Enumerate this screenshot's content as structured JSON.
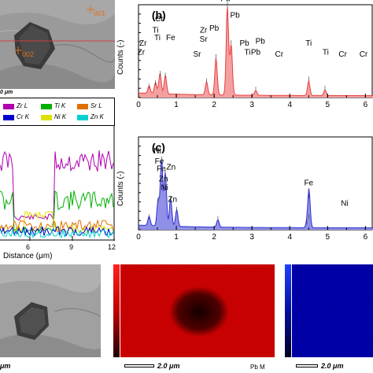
{
  "colors": {
    "zr": "#b000b0",
    "ti": "#00b000",
    "sr": "#e07000",
    "cr": "#0000d0",
    "ni": "#e0e000",
    "zn": "#00d0d0",
    "pb_spectrum": "#e84040",
    "pb_fill": "#f4a0a0",
    "fe_spectrum": "#3030d0",
    "fe_fill": "#9090e8",
    "line_marker": "#d04040",
    "point_marker": "#e07020"
  },
  "top_left_sem": {
    "point_1": "001",
    "point_2": "002",
    "scale_label": "0 μm"
  },
  "linescan": {
    "legend": [
      {
        "label": "Zr L",
        "color": "#b000b0"
      },
      {
        "label": "Ti K",
        "color": "#00b000"
      },
      {
        "label": "Sr L",
        "color": "#e07000"
      },
      {
        "label": "Cr K",
        "color": "#0000d0"
      },
      {
        "label": "Ni K",
        "color": "#e0e000"
      },
      {
        "label": "Zn K",
        "color": "#00d0d0"
      }
    ],
    "x_ticks": [
      "6",
      "9",
      "12"
    ],
    "xlabel": "Distance (μm)"
  },
  "chart_data": [
    {
      "type": "line",
      "panel_label": "(b)",
      "ylabel": "Counts (-)",
      "x_ticks": [
        "0",
        "1",
        "2",
        "3",
        "4",
        "5",
        "6"
      ],
      "xlim": [
        0,
        6.2
      ],
      "ylim": [
        0,
        100
      ],
      "peaks": [
        {
          "x": 0.28,
          "y": 8
        },
        {
          "x": 0.45,
          "y": 12
        },
        {
          "x": 0.57,
          "y": 22
        },
        {
          "x": 0.71,
          "y": 20
        },
        {
          "x": 1.8,
          "y": 14
        },
        {
          "x": 2.05,
          "y": 40
        },
        {
          "x": 2.35,
          "y": 96
        },
        {
          "x": 2.45,
          "y": 55
        },
        {
          "x": 3.1,
          "y": 5
        },
        {
          "x": 4.5,
          "y": 16
        },
        {
          "x": 4.93,
          "y": 6
        }
      ],
      "labels": [
        {
          "text": "Cr",
          "x": 0.55,
          "y": 82
        },
        {
          "text": "Ti",
          "x": 0.45,
          "y": 70
        },
        {
          "text": "Ti",
          "x": 0.5,
          "y": 62
        },
        {
          "text": "Fe",
          "x": 0.85,
          "y": 62
        },
        {
          "text": "Zr",
          "x": 0.12,
          "y": 56
        },
        {
          "text": "Zr",
          "x": 0.07,
          "y": 46
        },
        {
          "text": "Sr",
          "x": 1.55,
          "y": 44
        },
        {
          "text": "Zr",
          "x": 1.72,
          "y": 70
        },
        {
          "text": "Sr",
          "x": 1.72,
          "y": 60
        },
        {
          "text": "Pb",
          "x": 2.0,
          "y": 72
        },
        {
          "text": "Pb",
          "x": 2.3,
          "y": 104
        },
        {
          "text": "Pb",
          "x": 2.55,
          "y": 86
        },
        {
          "text": "Pb",
          "x": 2.8,
          "y": 56
        },
        {
          "text": "Pb",
          "x": 3.22,
          "y": 58
        },
        {
          "text": "Ti",
          "x": 2.88,
          "y": 46
        },
        {
          "text": "Pb",
          "x": 3.1,
          "y": 46
        },
        {
          "text": "Cr",
          "x": 3.72,
          "y": 44
        },
        {
          "text": "Ti",
          "x": 4.5,
          "y": 56
        },
        {
          "text": "Ti",
          "x": 4.95,
          "y": 46
        },
        {
          "text": "Cr",
          "x": 5.4,
          "y": 44
        },
        {
          "text": "Cr",
          "x": 5.95,
          "y": 44
        }
      ]
    },
    {
      "type": "line",
      "panel_label": "(c)",
      "ylabel": "Counts (-)",
      "x_ticks": [
        "0",
        "1",
        "2",
        "3",
        "4",
        "5",
        "6"
      ],
      "xlim": [
        0,
        6.2
      ],
      "ylim": [
        0,
        100
      ],
      "peaks": [
        {
          "x": 0.28,
          "y": 10
        },
        {
          "x": 0.52,
          "y": 28
        },
        {
          "x": 0.61,
          "y": 72
        },
        {
          "x": 0.71,
          "y": 58
        },
        {
          "x": 0.85,
          "y": 30
        },
        {
          "x": 1.01,
          "y": 18
        },
        {
          "x": 2.1,
          "y": 8
        },
        {
          "x": 4.45,
          "y": 4
        },
        {
          "x": 4.5,
          "y": 10
        },
        {
          "x": 4.51,
          "y": 32
        }
      ],
      "labels": [
        {
          "text": "Ni",
          "x": 0.5,
          "y": 82
        },
        {
          "text": "Fe",
          "x": 0.55,
          "y": 71
        },
        {
          "text": "Zn",
          "x": 0.86,
          "y": 65
        },
        {
          "text": "Fe",
          "x": 0.6,
          "y": 63
        },
        {
          "text": "Zn",
          "x": 0.66,
          "y": 52
        },
        {
          "text": "Ni",
          "x": 0.69,
          "y": 43
        },
        {
          "text": "Zn",
          "x": 0.9,
          "y": 30
        },
        {
          "text": "Fe",
          "x": 4.5,
          "y": 48
        },
        {
          "text": "Ni",
          "x": 5.45,
          "y": 26
        }
      ]
    }
  ],
  "bottom": {
    "scale_label_1": "μm",
    "scale_label_2": "2.0 μm",
    "map_label_pb": "Pb M",
    "scale_label_3": "2.0 μm"
  }
}
